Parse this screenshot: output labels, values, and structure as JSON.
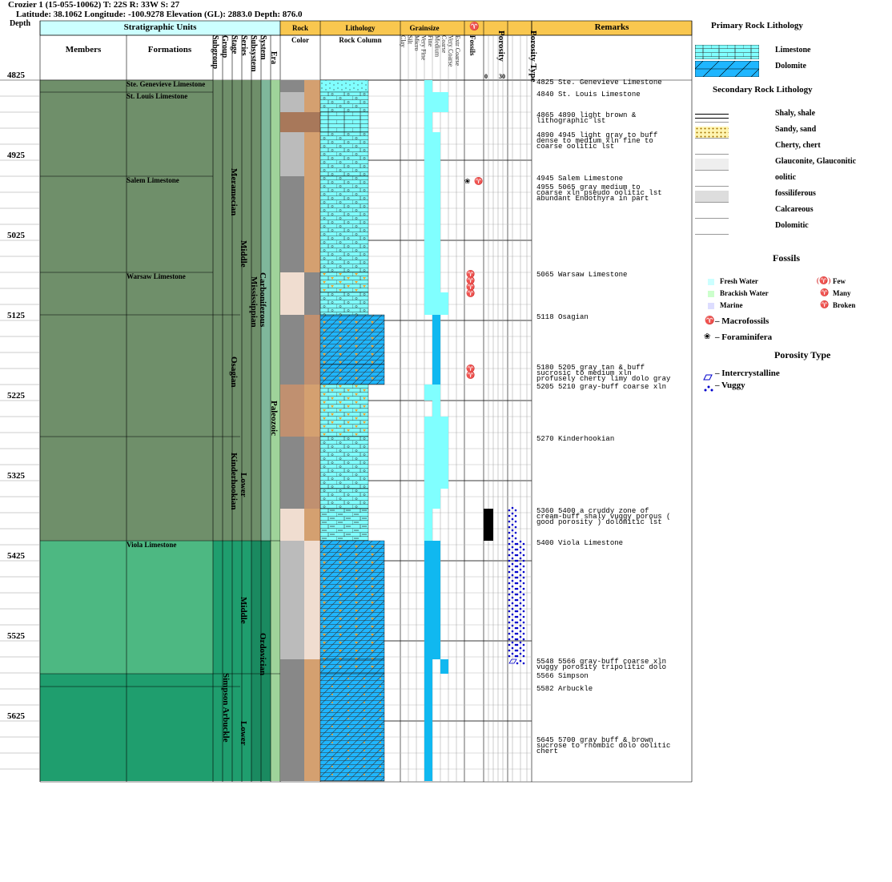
{
  "header": {
    "title": "Crozier 1 (15-055-10062) T: 22S R: 33W S: 27",
    "subtitle": "Latitude: 38.1062 Longitude: -100.9278 Elevation (GL): 2883.0 Depth: 876.0"
  },
  "columns": {
    "depth": "Depth",
    "strat_units": "Stratigraphic Units",
    "members": "Members",
    "formations": "Formations",
    "vertical": [
      "Subgroup",
      "Group",
      "Stage",
      "Series",
      "Subsystem",
      "System",
      "Era"
    ],
    "rock": "Rock",
    "color": "Color",
    "lithology": "Lithology",
    "rock_column": "Rock Column",
    "grainsize": "Grainsize",
    "grain_classes": [
      "Clay",
      "Silt",
      "Micro",
      "Very Fine",
      "Fine",
      "Medium",
      "Coarse",
      "Very Coarse",
      "Extr Coarse"
    ],
    "fossils": "Fossils",
    "porosity": "Porosity",
    "porosity_scale_min": "0",
    "porosity_scale_max": "30",
    "porosity_type": "Porosity Type",
    "remarks": "Remarks"
  },
  "depth_ticks": [
    "4825",
    "4925",
    "5025",
    "5125",
    "5225",
    "5325",
    "5425",
    "5525",
    "5625"
  ],
  "formations": [
    {
      "name": "Ste. Genevieve Limestone",
      "top": 4825
    },
    {
      "name": "St. Louis Limestone",
      "top": 4840
    },
    {
      "name": "Salem Limestone",
      "top": 4945
    },
    {
      "name": "Warsaw Limestone",
      "top": 5065
    },
    {
      "name": "Viola Limestone",
      "top": 5400
    }
  ],
  "vertical_units": [
    {
      "name": "Meramecian",
      "col": "stage"
    },
    {
      "name": "Osagian",
      "col": "stage"
    },
    {
      "name": "Kinderhookian",
      "col": "stage"
    },
    {
      "name": "Simpson Arbuckle",
      "col": "group"
    },
    {
      "name": "Middle",
      "col": "series"
    },
    {
      "name": "Lower",
      "col": "series"
    },
    {
      "name": "Middle",
      "col": "series"
    },
    {
      "name": "Lower",
      "col": "series"
    },
    {
      "name": "Mississippian",
      "col": "subsystem"
    },
    {
      "name": "Carboniferous",
      "col": "system"
    },
    {
      "name": "Ordovician",
      "col": "system"
    },
    {
      "name": "Paleozoic",
      "col": "era"
    }
  ],
  "remarks": [
    {
      "text": "4825 Ste. Genevieve Limestone"
    },
    {
      "text": "4840 St. Louis Limestone"
    },
    {
      "text": "4865 4890 light brown &\nlithographic lst"
    },
    {
      "text": "4890 4945 light gray to buff\ndense to medium xln fine to\ncoarse oolitic lst"
    },
    {
      "text": "4945 Salem Limestone"
    },
    {
      "text": "4955 5065 gray medium to\ncoarse xln pseudo oolitic lst\nabundant Endothyra in part"
    },
    {
      "text": "5065 Warsaw Limestone"
    },
    {
      "text": "5118 Osagian"
    },
    {
      "text": "5180 5205 gray tan & buff\nsucrosic to medium xln\nprofusely cherty limy dolo gray"
    },
    {
      "text": "5205 5210 gray-buff coarse xln"
    },
    {
      "text": "5270 Kinderhookian"
    },
    {
      "text": "5360 5400 a cruddy zone of\ncream-buff shaly vuggy porous (\ngood porosity ) dolomitic lst"
    },
    {
      "text": "5400 Viola Limestone"
    },
    {
      "text": "5548 5566 gray-buff coarse xln\nvuggy porosity tripolitic dolo"
    },
    {
      "text": "5566 Simpson"
    },
    {
      "text": "5582 Arbuckle"
    },
    {
      "text": "5645 5700 gray buff & brown\nsucrose to rhombic dolo oolitic\nchert"
    }
  ],
  "legend": {
    "primary_title": "Primary Rock Lithology",
    "primary": [
      "Limestone",
      "Dolomite"
    ],
    "secondary_title": "Secondary Rock Lithology",
    "secondary": [
      "Shaly, shale",
      "Sandy, sand",
      "Cherty, chert",
      "Glauconite, Glauconitic",
      "oolitic",
      "fossiliferous",
      "Calcareous",
      "Dolomitic"
    ],
    "fossils_title": "Fossils",
    "water": [
      "Fresh Water",
      "Brackish Water",
      "Marine"
    ],
    "abundance": [
      "Few",
      "Many",
      "Broken"
    ],
    "macro": "– Macrofossils",
    "foram": "– Foraminifera",
    "porosity_title": "Porosity Type",
    "porosity_types": [
      "– Intercrystalline",
      "– Vuggy"
    ]
  },
  "colors": {
    "header_bg": "#f9c74f",
    "strat_header_bg": "#ccffff",
    "mississippian": "#6f8f6a",
    "ordovician_upper": "#4db882",
    "ordovician_lower": "#1f9e6e",
    "limestone": "#80ffff",
    "dolomite": "#1fb6ff",
    "grain": "#80ffff",
    "grain_dolo": "#10b8f0"
  }
}
